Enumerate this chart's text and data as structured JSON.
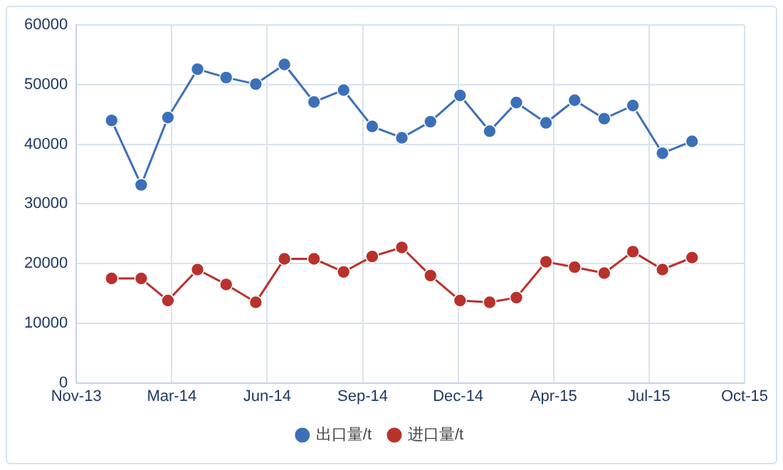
{
  "chart_data": {
    "type": "line",
    "x": [
      "2014-01",
      "2014-02",
      "2014-03",
      "2014-04",
      "2014-05",
      "2014-06",
      "2014-07",
      "2014-08",
      "2014-09",
      "2014-10",
      "2014-11",
      "2014-12",
      "2015-01",
      "2015-02",
      "2015-03",
      "2015-04",
      "2015-05",
      "2015-06",
      "2015-07",
      "2015-08",
      "2015-09"
    ],
    "series": [
      {
        "name": "出口量/t",
        "color": "#3b70b9",
        "values": [
          44000,
          33200,
          44500,
          52600,
          51200,
          50100,
          53400,
          47100,
          49100,
          43000,
          41100,
          43800,
          48200,
          42200,
          47000,
          43600,
          47400,
          44300,
          46500,
          38500,
          40500
        ]
      },
      {
        "name": "进口量/t",
        "color": "#b9312d",
        "values": [
          17500,
          17500,
          13800,
          19000,
          16500,
          13500,
          20800,
          20800,
          18600,
          21200,
          22700,
          18000,
          13800,
          13500,
          14300,
          20300,
          19400,
          18400,
          22000,
          19000,
          21000
        ]
      }
    ],
    "xlim": [
      "2013-11-25",
      "2015-10-26"
    ],
    "xticks": [
      {
        "value": "2013-11-25",
        "label": "Nov-13"
      },
      {
        "value": "2014-03-05",
        "label": "Mar-14"
      },
      {
        "value": "2014-06-13",
        "label": "Jun-14"
      },
      {
        "value": "2014-09-21",
        "label": "Sep-14"
      },
      {
        "value": "2014-12-30",
        "label": "Dec-14"
      },
      {
        "value": "2015-04-09",
        "label": "Apr-15"
      },
      {
        "value": "2015-07-18",
        "label": "Jul-15"
      },
      {
        "value": "2015-10-26",
        "label": "Oct-15"
      }
    ],
    "ylim": [
      0,
      60000
    ],
    "yticks": [
      0,
      10000,
      20000,
      30000,
      40000,
      50000,
      60000
    ],
    "grid": true,
    "legend": "bottom",
    "marker": "circle",
    "line_style": "solid"
  }
}
